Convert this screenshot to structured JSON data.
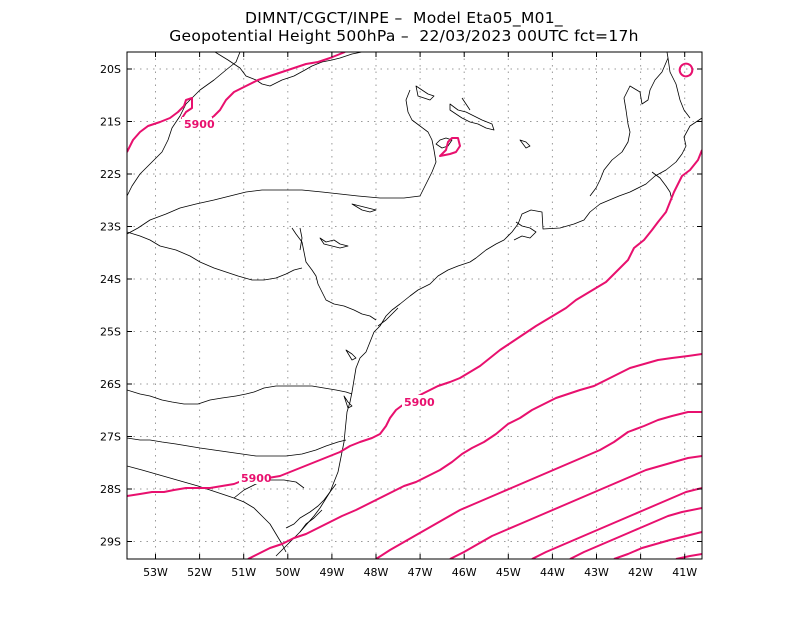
{
  "header": {
    "line1": "DIMNT/CGCT/INPE –  Model Eta05_M01_",
    "line2": "Geopotential Height 500hPa –  22/03/2023 00UTC fct=17h"
  },
  "colors": {
    "contour": "#e8106e",
    "coast": "#000000",
    "grid": "#9a9a9a"
  },
  "map": {
    "lon_ticks": [
      "53W",
      "52W",
      "51W",
      "50W",
      "49W",
      "48W",
      "47W",
      "46W",
      "45W",
      "44W",
      "43W",
      "42W",
      "41W"
    ],
    "lat_ticks": [
      "20S",
      "21S",
      "22S",
      "23S",
      "24S",
      "25S",
      "26S",
      "27S",
      "28S",
      "29S"
    ],
    "contour_labels": [
      "5900",
      "5900",
      "5900"
    ]
  }
}
